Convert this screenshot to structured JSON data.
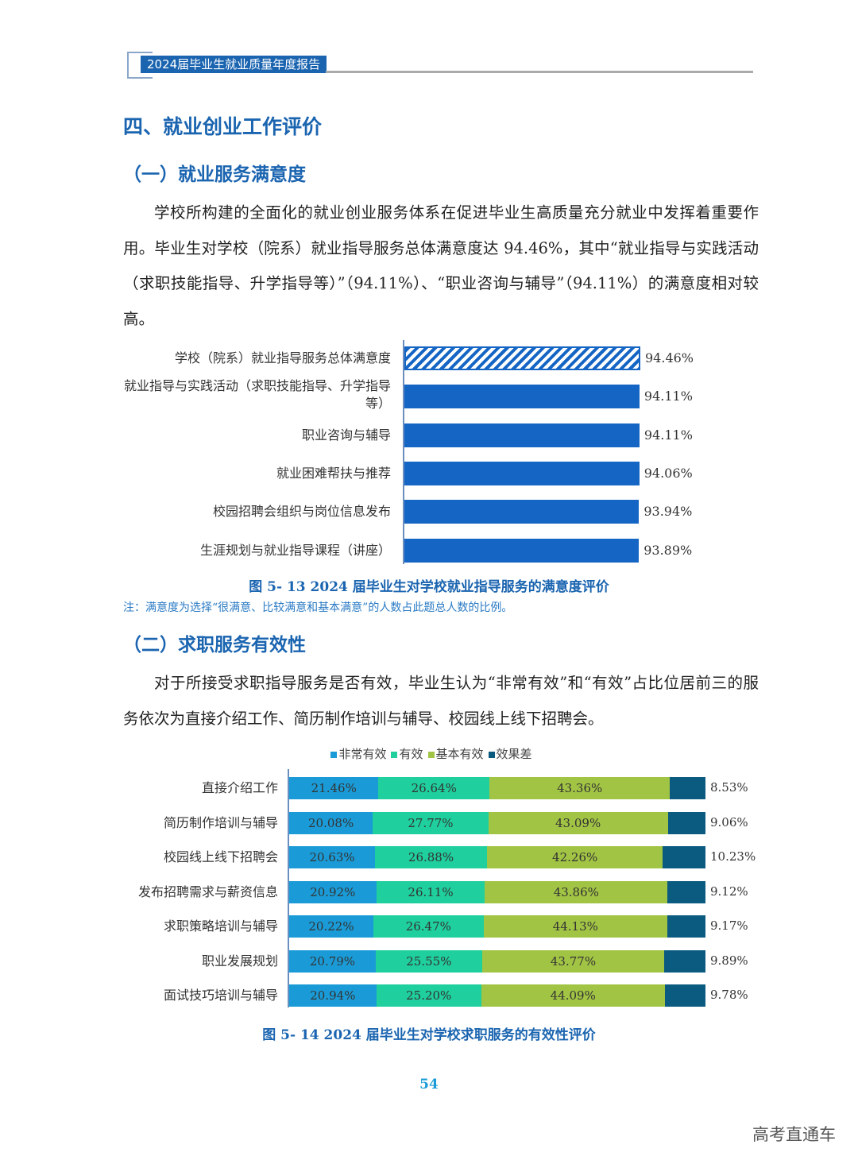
{
  "header": {
    "title": "2024届毕业生就业质量年度报告"
  },
  "section": {
    "title": "四、就业创业工作评价"
  },
  "sub1": {
    "title": "（一）就业服务满意度",
    "paragraph": "学校所构建的全面化的就业创业服务体系在促进毕业生高质量充分就业中发挥着重要作用。毕业生对学校（院系）就业指导服务总体满意度达 94.46%，其中“就业指导与实践活动（求职技能指导、升学指导等）”（94.11%）、“职业咨询与辅导”（94.11%）的满意度相对较高。"
  },
  "sub2": {
    "title": "（二）求职服务有效性",
    "paragraph": "对于所接受求职指导服务是否有效，毕业生认为“非常有效”和“有效”占比位居前三的服务依次为直接介绍工作、简历制作培训与辅导、校园线上线下招聘会。"
  },
  "chart_data": [
    {
      "type": "bar",
      "orientation": "horizontal",
      "categories": [
        "学校（院系）就业指导服务总体满意度",
        "就业指导与实践活动（求职技能指导、升学指导等）",
        "职业咨询与辅导",
        "就业困难帮扶与推荐",
        "校园招聘会组织与岗位信息发布",
        "生涯规划与就业指导课程（讲座）"
      ],
      "values": [
        94.46,
        94.11,
        94.11,
        94.06,
        93.94,
        93.89
      ],
      "data_labels": [
        "94.46%",
        "94.11%",
        "94.11%",
        "94.06%",
        "93.94%",
        "93.89%"
      ],
      "first_bar_pattern": "hatched",
      "colors": {
        "bar": "#1565c4"
      },
      "title": "图 5- 13   2024 届毕业生对学校就业指导服务的满意度评价",
      "note": "注：满意度为选择“很满意、比较满意和基本满意”的人数占此题总人数的比例。"
    },
    {
      "type": "bar",
      "orientation": "horizontal",
      "stacked": true,
      "categories": [
        "直接介绍工作",
        "简历制作培训与辅导",
        "校园线上线下招聘会",
        "发布招聘需求与薪资信息",
        "求职策略培训与辅导",
        "职业发展规划",
        "面试技巧培训与辅导"
      ],
      "series": [
        {
          "name": "非常有效",
          "color": "#1a9bd7",
          "values": [
            21.46,
            20.08,
            20.63,
            20.92,
            20.22,
            20.79,
            20.94
          ]
        },
        {
          "name": "有效",
          "color": "#1fcf9e",
          "values": [
            26.64,
            27.77,
            26.88,
            26.11,
            26.47,
            25.55,
            25.2
          ]
        },
        {
          "name": "基本有效",
          "color": "#a2c444",
          "values": [
            43.36,
            43.09,
            42.26,
            43.86,
            44.13,
            43.77,
            44.09
          ]
        },
        {
          "name": "效果差",
          "color": "#0b5b80",
          "values": [
            8.53,
            9.06,
            10.23,
            9.12,
            9.17,
            9.89,
            9.78
          ]
        }
      ],
      "legend": "top",
      "title": "图 5- 14  2024 届毕业生对学校求职服务的有效性评价"
    }
  ],
  "page_number": "54",
  "watermark": "高考直通车"
}
